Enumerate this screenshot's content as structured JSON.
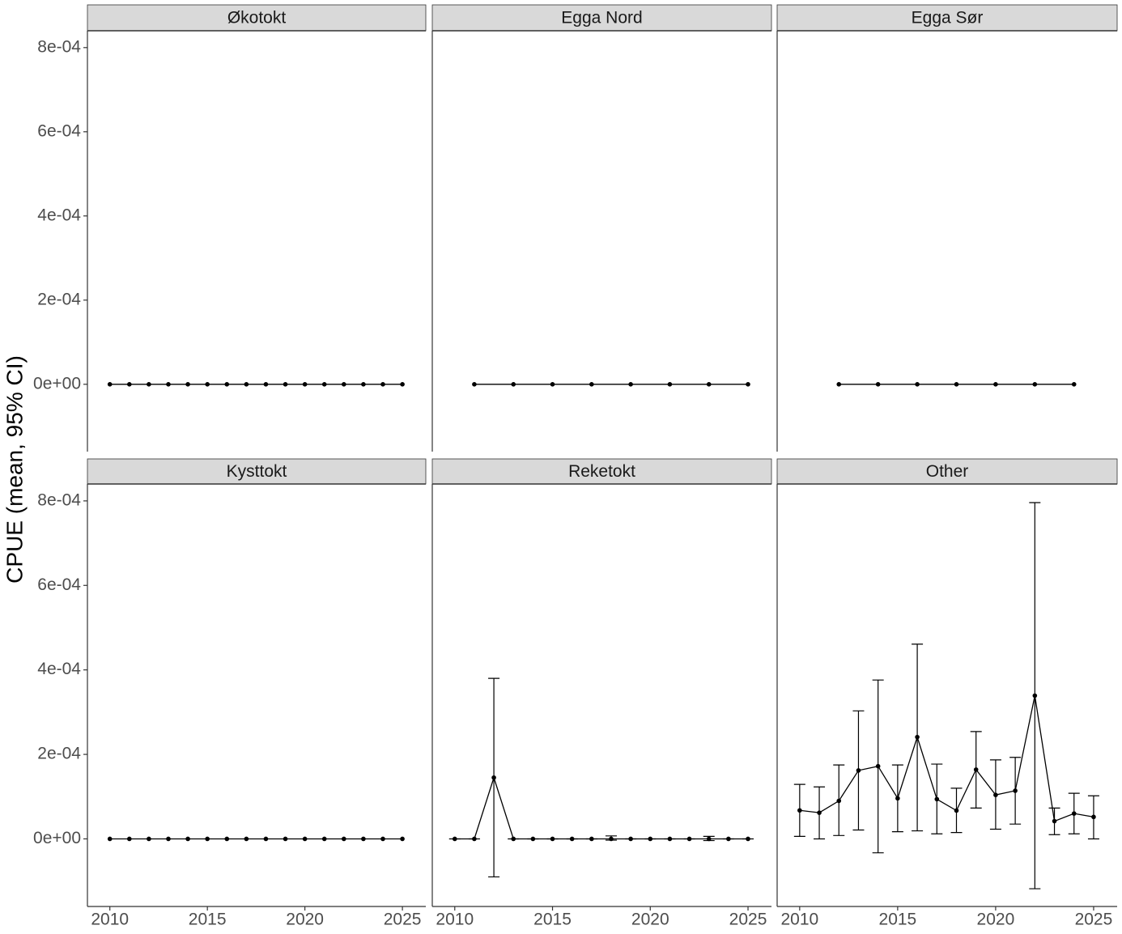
{
  "ylabel": "CPUE (mean, 95% CI)",
  "chart_data": [
    {
      "type": "line",
      "title": "Økotokt",
      "color": "#000000",
      "x": [
        2010,
        2011,
        2012,
        2013,
        2014,
        2015,
        2016,
        2017,
        2018,
        2019,
        2020,
        2021,
        2022,
        2023,
        2024,
        2025
      ],
      "values": [
        0,
        0,
        0,
        0,
        0,
        0,
        0,
        0,
        0,
        0,
        0,
        0,
        0,
        0,
        0,
        0
      ],
      "xlim": [
        2008.85,
        2026.2
      ],
      "ylim": [
        -0.00016,
        0.00084
      ],
      "yticks": [
        {
          "value": 0,
          "label": "0e+00"
        },
        {
          "value": 0.0002,
          "label": "2e-04"
        },
        {
          "value": 0.0004,
          "label": "4e-04"
        },
        {
          "value": 0.0006,
          "label": "6e-04"
        },
        {
          "value": 0.0008,
          "label": "8e-04"
        }
      ]
    },
    {
      "type": "line",
      "title": "Egga Nord",
      "color": "#000000",
      "x": [
        2011,
        2013,
        2015,
        2017,
        2019,
        2021,
        2023,
        2025
      ],
      "values": [
        0,
        0,
        0,
        0,
        0,
        0,
        0,
        0
      ],
      "xlim": [
        2008.85,
        2026.2
      ],
      "ylim": [
        -0.00016,
        0.00084
      ]
    },
    {
      "type": "line",
      "title": "Egga Sør",
      "color": "#000000",
      "x": [
        2012,
        2014,
        2016,
        2018,
        2020,
        2022,
        2024
      ],
      "values": [
        0,
        0,
        0,
        0,
        0,
        0,
        0
      ],
      "xlim": [
        2008.85,
        2026.2
      ],
      "ylim": [
        -0.00016,
        0.00084
      ]
    },
    {
      "type": "line",
      "title": "Kysttokt",
      "color": "#000000",
      "x": [
        2010,
        2011,
        2012,
        2013,
        2014,
        2015,
        2016,
        2017,
        2018,
        2019,
        2020,
        2021,
        2022,
        2023,
        2024,
        2025
      ],
      "values": [
        0,
        0,
        0,
        0,
        0,
        0,
        0,
        0,
        0,
        0,
        0,
        0,
        0,
        0,
        0,
        0
      ],
      "xlim": [
        2008.85,
        2026.2
      ],
      "ylim": [
        -0.00016,
        0.00084
      ],
      "yticks": [
        {
          "value": 0,
          "label": "0e+00"
        },
        {
          "value": 0.0002,
          "label": "2e-04"
        },
        {
          "value": 0.0004,
          "label": "4e-04"
        },
        {
          "value": 0.0006,
          "label": "6e-04"
        },
        {
          "value": 0.0008,
          "label": "8e-04"
        }
      ],
      "xticks": [
        2010,
        2015,
        2020,
        2025
      ]
    },
    {
      "type": "line",
      "title": "Reketokt",
      "color": "#000000",
      "x": [
        2010,
        2011,
        2012,
        2013,
        2014,
        2015,
        2016,
        2017,
        2018,
        2019,
        2020,
        2021,
        2022,
        2023,
        2024,
        2025
      ],
      "values": [
        0,
        0,
        0.000145,
        0,
        0,
        0,
        0,
        0,
        0,
        0,
        0,
        0,
        0,
        0,
        0,
        0
      ],
      "lower": [
        0,
        0,
        -9e-05,
        0,
        0,
        0,
        0,
        0,
        -3e-06,
        0,
        0,
        0,
        0,
        -4e-06,
        0,
        0
      ],
      "upper": [
        0,
        0,
        0.00038,
        0,
        0,
        0,
        0,
        0,
        7e-06,
        0,
        0,
        0,
        0,
        6e-06,
        0,
        0
      ],
      "xlim": [
        2008.85,
        2026.2
      ],
      "ylim": [
        -0.00016,
        0.00084
      ],
      "xticks": [
        2010,
        2015,
        2020,
        2025
      ]
    },
    {
      "type": "line",
      "title": "Other",
      "color": "#000000",
      "x": [
        2010,
        2011,
        2012,
        2013,
        2014,
        2015,
        2016,
        2017,
        2018,
        2019,
        2020,
        2021,
        2022,
        2023,
        2024,
        2025
      ],
      "values": [
        6.75e-05,
        6.2e-05,
        9e-05,
        0.000162,
        0.000172,
        9.6e-05,
        0.000241,
        9.4e-05,
        6.7e-05,
        0.000164,
        0.000104,
        0.000114,
        0.000339,
        4.2e-05,
        6e-05,
        5.2e-05
      ],
      "lower": [
        6e-06,
        0,
        8e-06,
        2.1e-05,
        -3.3e-05,
        1.7e-05,
        1.9e-05,
        1.2e-05,
        1.5e-05,
        7.3e-05,
        2.3e-05,
        3.5e-05,
        -0.000118,
        1e-05,
        1.2e-05,
        0
      ],
      "upper": [
        0.000129,
        0.000123,
        0.000175,
        0.000303,
        0.000376,
        0.000175,
        0.000461,
        0.000177,
        0.00012,
        0.000254,
        0.000187,
        0.000193,
        0.000796,
        7.3e-05,
        0.000108,
        0.000102
      ],
      "xlim": [
        2008.85,
        2026.2
      ],
      "ylim": [
        -0.00016,
        0.00084
      ],
      "xticks": [
        2010,
        2015,
        2020,
        2025
      ]
    }
  ]
}
